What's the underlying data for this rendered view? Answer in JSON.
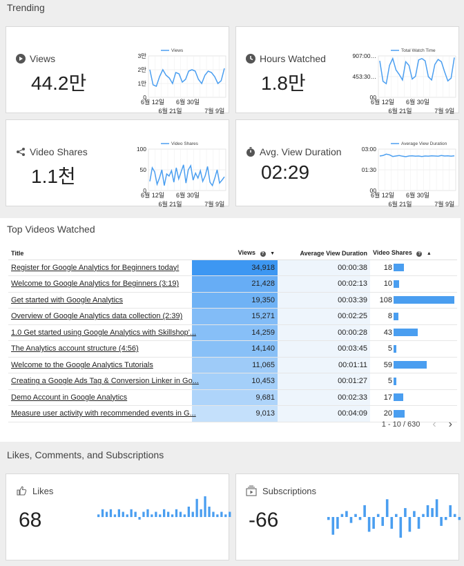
{
  "sections": {
    "trending": "Trending",
    "top_videos": "Top Videos Watched",
    "engagement": "Likes, Comments, and Subscriptions"
  },
  "kpis": [
    {
      "label": "Views",
      "value": "44.2만",
      "icon": "play-circle-icon",
      "legend": "Views",
      "yticks": [
        "3만",
        "2만",
        "1만",
        "0"
      ],
      "xticks_top": [
        "6월 12일",
        "6월 30일"
      ],
      "xticks_bottom": [
        "6월 21일",
        "7월 9일"
      ],
      "series": [
        2.0,
        0.9,
        0.8,
        1.5,
        2.0,
        1.6,
        1.4,
        1.0,
        1.8,
        1.7,
        1.1,
        1.3,
        1.9,
        2.0,
        1.9,
        1.3,
        1.0,
        1.6,
        1.9,
        1.8,
        1.5,
        1.0,
        1.2,
        2.1
      ],
      "ymax": 3
    },
    {
      "label": "Hours Watched",
      "value": "1.8만",
      "icon": "clock-icon",
      "legend": "Total Watch Time",
      "yticks": [
        "907:00…",
        "453:30…",
        "00"
      ],
      "xticks_top": [
        "6월 12일",
        "6월 30일"
      ],
      "xticks_bottom": [
        "6월 21일",
        "7월 9일"
      ],
      "series": [
        800,
        350,
        300,
        700,
        850,
        600,
        500,
        380,
        780,
        700,
        400,
        460,
        820,
        850,
        800,
        450,
        380,
        720,
        830,
        780,
        560,
        360,
        420,
        870
      ],
      "ymax": 907
    },
    {
      "label": "Video Shares",
      "value": "1.1천",
      "icon": "share-icon",
      "legend": "Video Shares",
      "yticks": [
        "100",
        "50",
        "0"
      ],
      "xticks_top": [
        "6월 12일",
        "6월 30일"
      ],
      "xticks_bottom": [
        "6월 21일",
        "7월 9일"
      ],
      "series": [
        22,
        55,
        45,
        15,
        30,
        50,
        12,
        40,
        35,
        48,
        20,
        55,
        28,
        45,
        62,
        18,
        50,
        60,
        25,
        42,
        30,
        48,
        22,
        35,
        58,
        20,
        12,
        30,
        50,
        18,
        25,
        33
      ],
      "ymax": 100
    },
    {
      "label": "Avg. View Duration",
      "value": "02:29",
      "icon": "stopwatch-icon",
      "legend": "Average View Duration",
      "yticks": [
        "03:00",
        "01:30",
        "00"
      ],
      "xticks_top": [
        "6월 12일",
        "6월 30일"
      ],
      "xticks_bottom": [
        "6월 21일",
        "7월 9일"
      ],
      "series": [
        150,
        152,
        158,
        155,
        148,
        150,
        152,
        149,
        147,
        150,
        151,
        149,
        150,
        148,
        150,
        149,
        151,
        150,
        149,
        152,
        150,
        151,
        149,
        151
      ],
      "ymax": 180
    }
  ],
  "table": {
    "headers": {
      "title": "Title",
      "views": "Views",
      "avd": "Average View Duration",
      "shares": "Video Shares"
    },
    "rows": [
      {
        "title": "Register for Google Analytics for Beginners today!",
        "views": "34,918",
        "avd": "00:00:38",
        "shares": "18",
        "views_num": 34918,
        "shares_num": 18
      },
      {
        "title": "Welcome to Google Analytics for Beginners (3:19)",
        "views": "21,428",
        "avd": "00:02:13",
        "shares": "10",
        "views_num": 21428,
        "shares_num": 10
      },
      {
        "title": "Get started with Google Analytics",
        "views": "19,350",
        "avd": "00:03:39",
        "shares": "108",
        "views_num": 19350,
        "shares_num": 108
      },
      {
        "title": "Overview of Google Analytics data collection (2:39)",
        "views": "15,271",
        "avd": "00:02:25",
        "shares": "8",
        "views_num": 15271,
        "shares_num": 8
      },
      {
        "title": "1.0 Get started using Google Analytics with Skillshop'...",
        "views": "14,259",
        "avd": "00:00:28",
        "shares": "43",
        "views_num": 14259,
        "shares_num": 43
      },
      {
        "title": "The Analytics account structure (4:56)",
        "views": "14,140",
        "avd": "00:03:45",
        "shares": "5",
        "views_num": 14140,
        "shares_num": 5
      },
      {
        "title": "Welcome to the Google Analytics Tutorials",
        "views": "11,065",
        "avd": "00:01:11",
        "shares": "59",
        "views_num": 11065,
        "shares_num": 59
      },
      {
        "title": "Creating a Google Ads Tag & Conversion Linker in Go...",
        "views": "10,453",
        "avd": "00:01:27",
        "shares": "5",
        "views_num": 10453,
        "shares_num": 5
      },
      {
        "title": "Demo Account in Google Analytics",
        "views": "9,681",
        "avd": "00:02:33",
        "shares": "17",
        "views_num": 9681,
        "shares_num": 17
      },
      {
        "title": "Measure user activity with recommended events in G...",
        "views": "9,013",
        "avd": "00:04:09",
        "shares": "20",
        "views_num": 9013,
        "shares_num": 20
      }
    ],
    "pagination": "1 - 10 / 630",
    "colors": {
      "views_max": "#3d97f2",
      "views_min": "#c4e0fb",
      "share_bar": "#4a9ef0"
    }
  },
  "engagement": [
    {
      "label": "Likes",
      "value": "68",
      "icon": "thumb-up-icon",
      "bars": [
        1,
        3,
        2,
        3,
        1,
        3,
        2,
        1,
        3,
        2,
        -1,
        2,
        3,
        1,
        2,
        1,
        3,
        2,
        1,
        3,
        2,
        1,
        4,
        2,
        7,
        3,
        8,
        4,
        2,
        1,
        2,
        1,
        2
      ]
    },
    {
      "label": "Subscriptions",
      "value": "-66",
      "icon": "subscriptions-icon",
      "bars": [
        -1,
        -6,
        -4,
        1,
        2,
        -2,
        1,
        -1,
        4,
        -5,
        -4,
        1,
        -3,
        6,
        -4,
        1,
        -7,
        3,
        -5,
        2,
        -4,
        1,
        4,
        3,
        6,
        -3,
        -1,
        4,
        1,
        -1
      ]
    }
  ]
}
